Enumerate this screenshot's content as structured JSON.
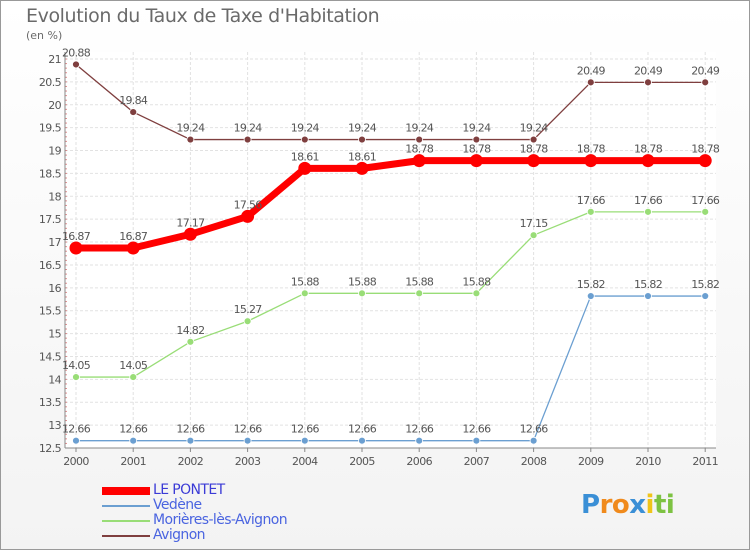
{
  "title": "Evolution du Taux de Taxe d'Habitation",
  "subtitle": "(en %)",
  "colors": {
    "le_pontet": "#ff0000",
    "vedene": "#6b9fd1",
    "morieres": "#99dd77",
    "avignon": "#7f3f3f"
  },
  "chart_data": {
    "type": "line",
    "x": [
      "2000",
      "2001",
      "2002",
      "2003",
      "2004",
      "2005",
      "2006",
      "2007",
      "2008",
      "2009",
      "2010",
      "2011"
    ],
    "ylim": [
      12.5,
      21
    ],
    "yticks": [
      "12.5",
      "13",
      "13.5",
      "14",
      "14.5",
      "15",
      "15.5",
      "16",
      "16.5",
      "17",
      "17.5",
      "18",
      "18.5",
      "19",
      "19.5",
      "20",
      "20.5",
      "21"
    ],
    "grid": true,
    "series": [
      {
        "name": "LE PONTET",
        "color": "#ff0000",
        "values": [
          16.87,
          16.87,
          17.17,
          17.56,
          18.61,
          18.61,
          18.78,
          18.78,
          18.78,
          18.78,
          18.78,
          18.78
        ],
        "labels": [
          "16.87",
          "16.87",
          "17.17",
          "17.56",
          "18.61",
          "18.61",
          "18.78",
          "18.78",
          "18.78",
          "18.78",
          "18.78",
          "18.78"
        ]
      },
      {
        "name": "Vedène",
        "color": "#6b9fd1",
        "values": [
          12.66,
          12.66,
          12.66,
          12.66,
          12.66,
          12.66,
          12.66,
          12.66,
          12.66,
          15.82,
          15.82,
          15.82
        ],
        "labels": [
          "12.66",
          "12.66",
          "12.66",
          "12.66",
          "12.66",
          "12.66",
          "12.66",
          "12.66",
          "12.66",
          "15.82",
          "15.82",
          "15.82"
        ]
      },
      {
        "name": "Morières-lès-Avignon",
        "color": "#99dd77",
        "values": [
          14.05,
          14.05,
          14.82,
          15.27,
          15.88,
          15.88,
          15.88,
          15.88,
          17.15,
          17.66,
          17.66,
          17.66
        ],
        "labels": [
          "14.05",
          "14.05",
          "14.82",
          "15.27",
          "15.88",
          "15.88",
          "15.88",
          "15.88",
          "17.15",
          "17.66",
          "17.66",
          "17.66"
        ]
      },
      {
        "name": "Avignon",
        "color": "#7f3f3f",
        "values": [
          20.88,
          19.84,
          19.24,
          19.24,
          19.24,
          19.24,
          19.24,
          19.24,
          19.24,
          20.49,
          20.49,
          20.49
        ],
        "labels": [
          "20.88",
          "19.84",
          "19.24",
          "19.24",
          "19.24",
          "19.24",
          "19.24",
          "19.24",
          "19.24",
          "20.49",
          "20.49",
          "20.49"
        ]
      }
    ]
  },
  "logo": {
    "letters": [
      "P",
      "r",
      "o",
      "x",
      "i",
      "t",
      "i"
    ],
    "colors": [
      "#3a8fd6",
      "#f08a1c",
      "#f08a1c",
      "#3a8fd6",
      "#f0c419",
      "#7dc242",
      "#7dc242"
    ]
  }
}
